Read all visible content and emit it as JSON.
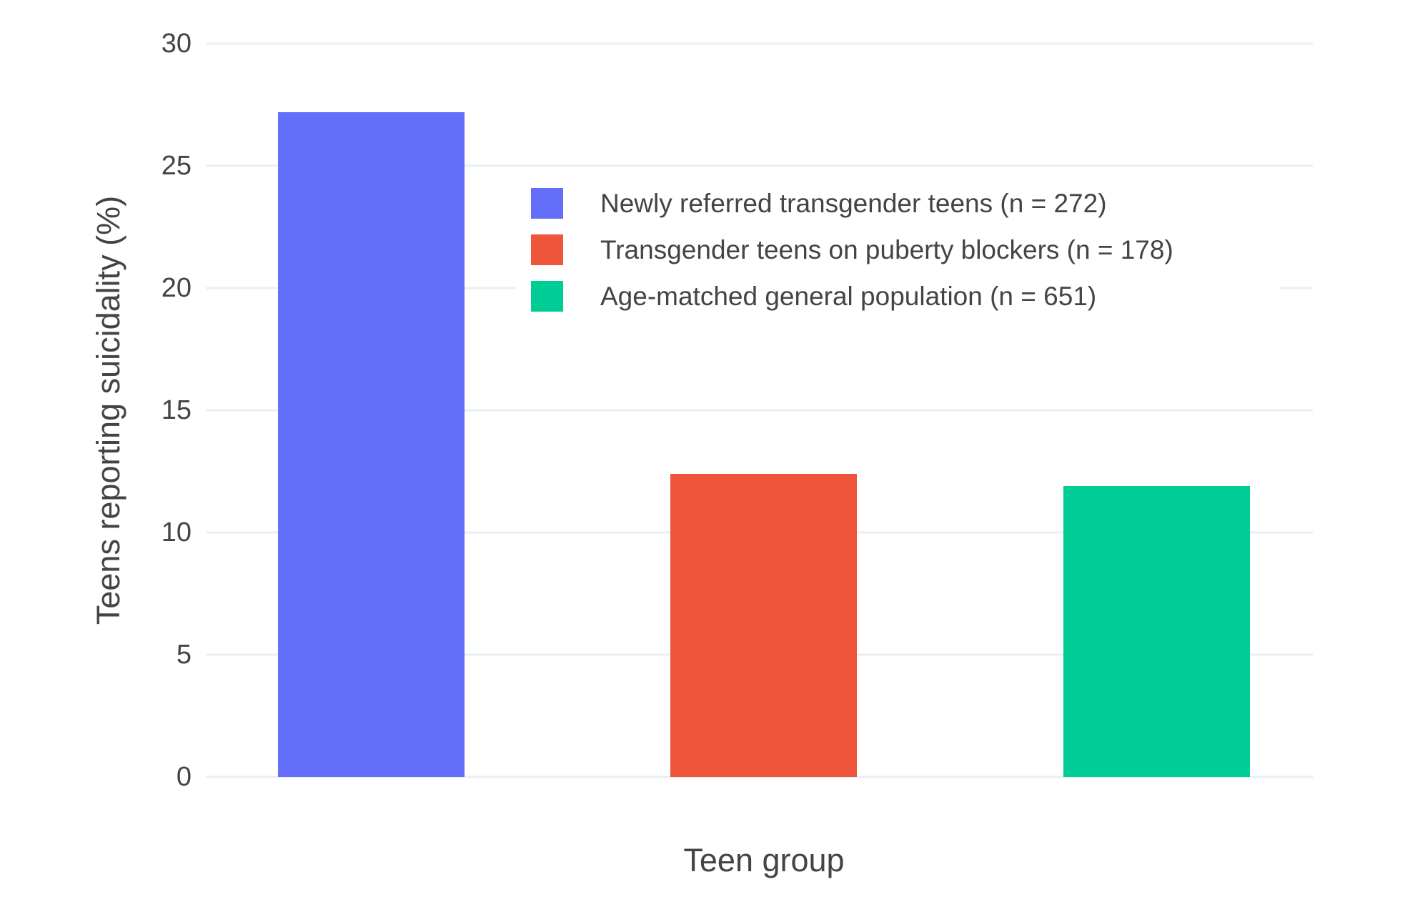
{
  "chart_data": {
    "type": "bar",
    "title": "",
    "xlabel": "Teen group",
    "ylabel": "Teens reporting suicidality (%)",
    "categories": [
      "Newly referred transgender teens (n = 272)",
      "Transgender teens on puberty blockers (n = 178)",
      "Age-matched general population (n = 651)"
    ],
    "values": [
      27.2,
      12.4,
      11.9
    ],
    "colors": [
      "#636EFA",
      "#EF553B",
      "#00CC96"
    ],
    "ylim": [
      0,
      30
    ],
    "yticks": [
      0,
      5,
      10,
      15,
      20,
      25,
      30
    ],
    "grid": true,
    "x_tick_labels_shown": false,
    "legend": {
      "position": "inside-top-center",
      "entries": [
        {
          "label": "Newly referred transgender teens (n = 272)",
          "color": "#636EFA"
        },
        {
          "label": "Transgender teens on puberty blockers (n = 178)",
          "color": "#EF553B"
        },
        {
          "label": "Age-matched general population (n = 651)",
          "color": "#00CC96"
        }
      ]
    },
    "styles": {
      "grid_color": "#E9EEF7",
      "text_color": "#444444",
      "background": "#FFFFFF"
    }
  }
}
